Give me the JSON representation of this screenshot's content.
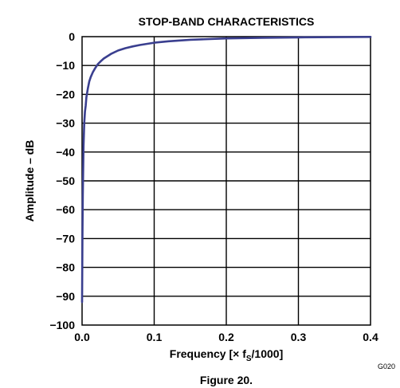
{
  "chart_data": {
    "type": "line",
    "title": "STOP-BAND CHARACTERISTICS",
    "xlabel_pre": "Frequency [",
    "xlabel_times": "× f",
    "xlabel_sub": "S",
    "xlabel_post": "/1000]",
    "ylabel": "Amplitude – dB",
    "xlim": [
      0,
      0.4
    ],
    "ylim": [
      -100,
      0
    ],
    "x_ticks": [
      "0.0",
      "0.1",
      "0.2",
      "0.3",
      "0.4"
    ],
    "y_ticks": [
      "0",
      "−10",
      "−20",
      "−30",
      "−40",
      "−50",
      "−60",
      "−70",
      "−80",
      "−90",
      "−100"
    ],
    "grid": true,
    "line_color": "#3a3f8f",
    "series": [
      {
        "x": [
          0.0,
          0.0005,
          0.001,
          0.002,
          0.003,
          0.004,
          0.005,
          0.006,
          0.008,
          0.01,
          0.012,
          0.015,
          0.018,
          0.022,
          0.026,
          0.03,
          0.035,
          0.04,
          0.05,
          0.06,
          0.07,
          0.08,
          0.1,
          0.12,
          0.15,
          0.2,
          0.25,
          0.3,
          0.35,
          0.4
        ],
        "values": [
          -92,
          -70,
          -55,
          -38,
          -30,
          -26,
          -24,
          -21,
          -18,
          -15.5,
          -14,
          -12.3,
          -11,
          -9.5,
          -8.5,
          -7.6,
          -6.8,
          -6.0,
          -4.8,
          -4.0,
          -3.4,
          -2.9,
          -2.1,
          -1.6,
          -1.1,
          -0.6,
          -0.4,
          -0.25,
          -0.15,
          -0.1
        ]
      }
    ]
  },
  "figure_caption": "Figure 20.",
  "figure_code": "G020"
}
